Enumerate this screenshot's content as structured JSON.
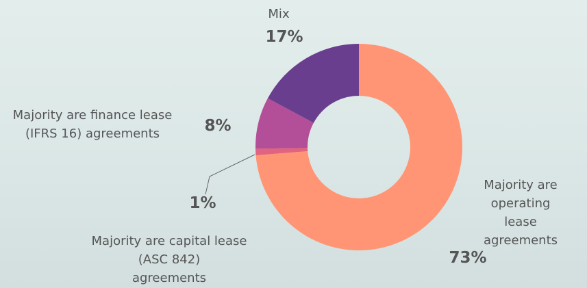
{
  "chart_data": {
    "type": "donut",
    "categories": [
      "Majority are\noperating lease\nagreements",
      "Majority are capital lease\n(ASC 842)\nagreements",
      "Majority are finance lease\n(IFRS 16) agreements",
      "Mix"
    ],
    "values": [
      73,
      1,
      8,
      17
    ],
    "value_labels": [
      "73%",
      "1%",
      "8%",
      "17%"
    ],
    "colors": [
      "#ff9574",
      "#e0637f",
      "#b24f98",
      "#6a3e8e"
    ]
  }
}
